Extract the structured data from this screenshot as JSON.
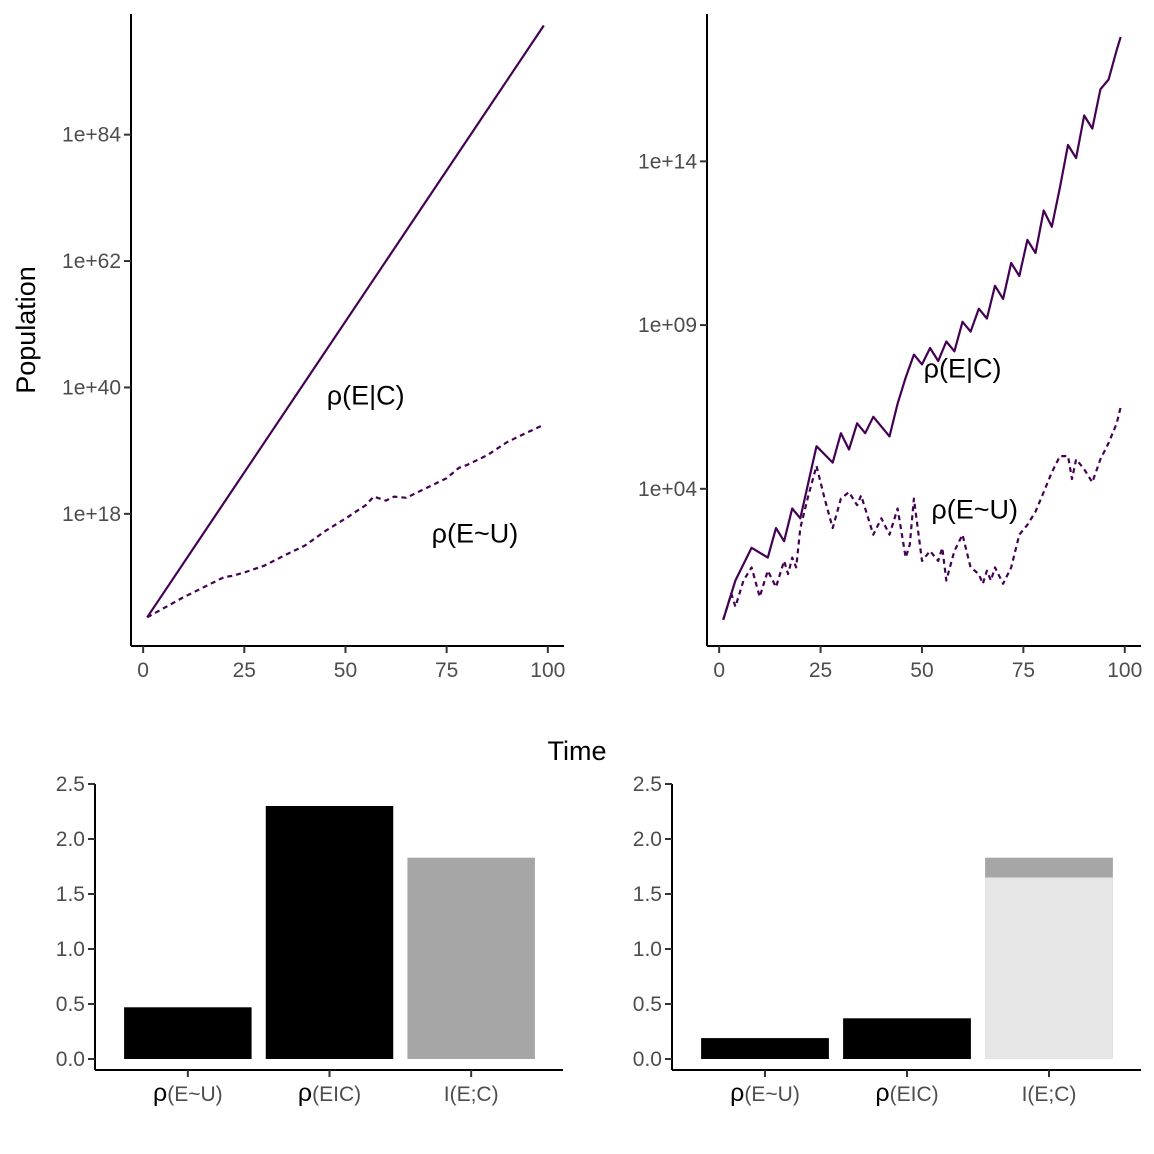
{
  "figure": {
    "shared_ylabel": "Population",
    "shared_xlabel": "Time"
  },
  "chart_data": [
    {
      "id": "top-left",
      "type": "line",
      "yscale": "log",
      "xlabel": "",
      "ylabel": "Population",
      "xlim": [
        -3,
        104
      ],
      "ylim_log10": [
        -5,
        105
      ],
      "xticks": [
        0,
        25,
        50,
        75,
        100
      ],
      "xtick_labels": [
        "0",
        "25",
        "50",
        "75",
        "100"
      ],
      "yticks_log10": [
        18,
        40,
        62,
        84
      ],
      "ytick_labels": [
        "1e+18",
        "1e+40",
        "1e+62",
        "1e+84"
      ],
      "color": "#440154",
      "annotations": [
        {
          "text": "ρ(E|C)",
          "x": 55,
          "log10y": 37
        },
        {
          "text": "ρ(E~U)",
          "x": 82,
          "log10y": 13
        }
      ],
      "series": [
        {
          "name": "ρ(E|C)",
          "linestyle": "solid",
          "x": [
            1,
            99
          ],
          "log10y": [
            0,
            103
          ]
        },
        {
          "name": "ρ(E~U)",
          "linestyle": "dashed",
          "x": [
            1,
            10,
            20,
            22,
            25,
            30,
            35,
            40,
            45,
            50,
            55,
            57,
            60,
            62,
            65,
            70,
            75,
            78,
            80,
            85,
            90,
            95,
            99
          ],
          "log10y": [
            0,
            3.5,
            7,
            7.2,
            7.8,
            9,
            10.8,
            12.5,
            15,
            17.2,
            19.5,
            21,
            20.3,
            21,
            20.8,
            22.5,
            24.2,
            26,
            26.5,
            28.2,
            30.5,
            32.2,
            33.5
          ]
        }
      ]
    },
    {
      "id": "top-right",
      "type": "line",
      "yscale": "log",
      "xlabel": "",
      "ylabel": "",
      "xlim": [
        -3,
        104
      ],
      "ylim_log10": [
        -0.8,
        18.5
      ],
      "xticks": [
        0,
        25,
        50,
        75,
        100
      ],
      "xtick_labels": [
        "0",
        "25",
        "50",
        "75",
        "100"
      ],
      "yticks_log10": [
        4,
        9,
        14
      ],
      "ytick_labels": [
        "1e+04",
        "1e+09",
        "1e+14"
      ],
      "color": "#440154",
      "annotations": [
        {
          "text": "ρ(E|C)",
          "x": 60,
          "log10y": 7.4
        },
        {
          "text": "ρ(E~U)",
          "x": 63,
          "log10y": 3.1
        }
      ],
      "series": [
        {
          "name": "ρ(E|C)",
          "linestyle": "solid",
          "x": [
            1,
            4,
            8,
            12,
            14,
            16,
            18,
            20,
            22,
            24,
            28,
            30,
            32,
            34,
            36,
            38,
            40,
            42,
            44,
            46,
            48,
            50,
            52,
            54,
            56,
            58,
            60,
            62,
            64,
            66,
            68,
            70,
            72,
            74,
            76,
            78,
            80,
            82,
            84,
            86,
            88,
            90,
            92,
            94,
            96,
            98,
            99
          ],
          "log10y": [
            0,
            1.2,
            2.2,
            1.9,
            2.8,
            2.4,
            3.4,
            3.1,
            4.2,
            5.3,
            4.8,
            5.7,
            5.2,
            6,
            5.7,
            6.2,
            5.9,
            5.6,
            6.6,
            7.4,
            8.1,
            7.8,
            8.3,
            7.9,
            8.5,
            8.2,
            9.1,
            8.8,
            9.5,
            9.2,
            10.2,
            9.8,
            10.9,
            10.5,
            11.6,
            11.2,
            12.5,
            12,
            13.2,
            14.5,
            14.1,
            15.4,
            15,
            16.2,
            16.5,
            17.4,
            17.8
          ]
        },
        {
          "name": "ρ(E~U)",
          "linestyle": "dashed",
          "x": [
            1,
            3,
            4,
            6,
            8,
            10,
            12,
            14,
            16,
            17,
            18,
            19,
            20,
            22,
            24,
            26,
            28,
            30,
            32,
            34,
            35,
            36,
            38,
            40,
            42,
            44,
            46,
            47,
            48,
            50,
            52,
            54,
            55,
            56,
            58,
            60,
            62,
            64,
            65,
            66,
            67,
            68,
            70,
            72,
            74,
            76,
            78,
            80,
            82,
            84,
            86,
            87,
            88,
            90,
            92,
            94,
            96,
            98,
            99
          ],
          "log10y": [
            0,
            0.8,
            0.4,
            1.2,
            1.6,
            0.7,
            1.5,
            1.0,
            1.8,
            1.4,
            1.9,
            1.6,
            2.8,
            3.8,
            4.7,
            3.7,
            2.8,
            3.7,
            3.9,
            3.5,
            3.8,
            3.4,
            2.6,
            3.1,
            2.6,
            3.4,
            1.9,
            2.3,
            3.7,
            1.8,
            2.1,
            1.8,
            2.2,
            1.2,
            2.1,
            2.6,
            1.6,
            1.4,
            1.1,
            1.5,
            1.2,
            1.6,
            1.1,
            1.6,
            2.6,
            2.9,
            3.3,
            3.9,
            4.5,
            5.0,
            5.0,
            4.3,
            4.9,
            4.6,
            4.2,
            4.9,
            5.4,
            6.0,
            6.5
          ]
        }
      ]
    },
    {
      "id": "bottom-left",
      "type": "bar",
      "xlabel": "",
      "ylabel": "",
      "ylim": [
        -0.1,
        2.5
      ],
      "yticks": [
        0.0,
        0.5,
        1.0,
        1.5,
        2.0,
        2.5
      ],
      "ytick_labels": [
        "0.0",
        "0.5",
        "1.0",
        "1.5",
        "2.0",
        "2.5"
      ],
      "categories": [
        {
          "symbol": "ρ",
          "sub": "(E~U)"
        },
        {
          "symbol": "ρ",
          "sub": "(EIC)"
        },
        {
          "symbol": "",
          "sub": "I(E;C)"
        }
      ],
      "values": [
        0.47,
        2.3,
        1.83
      ],
      "stack": [],
      "colors": [
        "#000000",
        "#000000",
        "#a6a6a6"
      ]
    },
    {
      "id": "bottom-right",
      "type": "bar",
      "xlabel": "",
      "ylabel": "",
      "ylim": [
        -0.1,
        2.5
      ],
      "yticks": [
        0.0,
        0.5,
        1.0,
        1.5,
        2.0,
        2.5
      ],
      "ytick_labels": [
        "0.0",
        "0.5",
        "1.0",
        "1.5",
        "2.0",
        "2.5"
      ],
      "categories": [
        {
          "symbol": "ρ",
          "sub": "(E~U)"
        },
        {
          "symbol": "ρ",
          "sub": "(EIC)"
        },
        {
          "symbol": "",
          "sub": "I(E;C)"
        }
      ],
      "values": [
        0.19,
        0.37,
        1.83
      ],
      "stack": [
        {
          "index": 2,
          "lower_value": 1.65,
          "lower_color": "#e6e6e6"
        }
      ],
      "colors": [
        "#000000",
        "#000000",
        "#a6a6a6"
      ]
    }
  ]
}
